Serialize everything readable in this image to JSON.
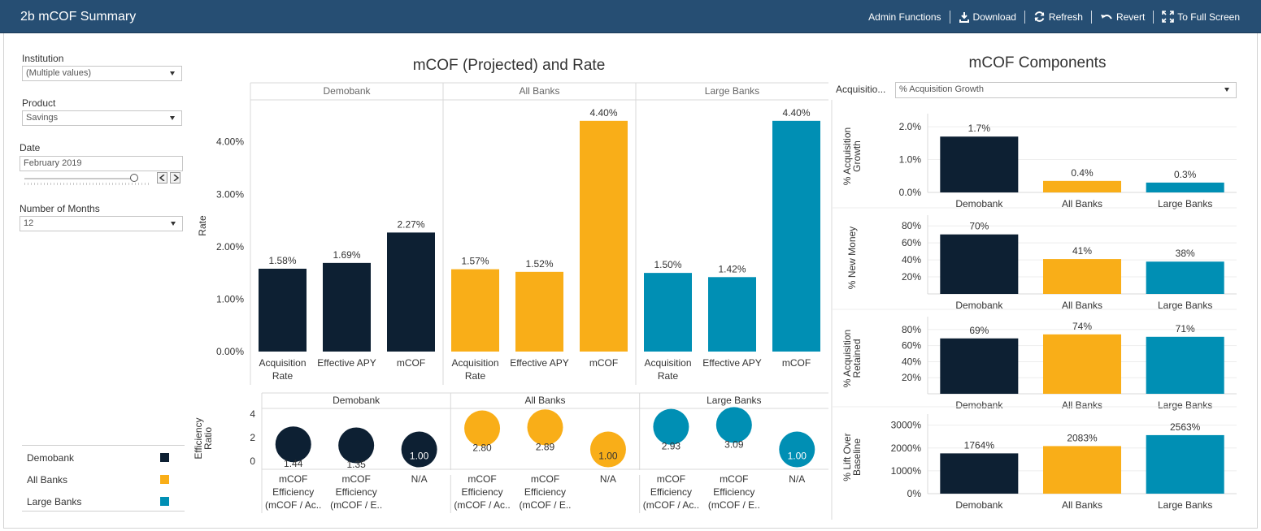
{
  "app": {
    "title": "2b mCOF Summary"
  },
  "toolbar": {
    "admin_label": "Admin Functions",
    "download_label": "Download",
    "refresh_label": "Refresh",
    "revert_label": "Revert",
    "fullscreen_label": "To Full Screen"
  },
  "filters": {
    "institution": {
      "label": "Institution",
      "value": "(Multiple values)"
    },
    "product": {
      "label": "Product",
      "value": "Savings"
    },
    "date": {
      "label": "Date",
      "value": "February 2019"
    },
    "months": {
      "label": "Number of Months",
      "value": "12"
    }
  },
  "legend": [
    {
      "name": "Demobank",
      "color": "#0d2033"
    },
    {
      "name": "All Banks",
      "color": "#f9ae18"
    },
    {
      "name": "Large Banks",
      "color": "#008fb4"
    }
  ],
  "colors": {
    "Demobank": "#0d2033",
    "All Banks": "#f9ae18",
    "Large Banks": "#008fb4"
  },
  "main_chart": {
    "title": "mCOF (Projected) and Rate"
  },
  "components": {
    "title": "mCOF Components",
    "selector_label": "Acquisitio...",
    "selector_value": "% Acquisition Growth"
  },
  "chart_data": [
    {
      "id": "rate",
      "type": "bar",
      "ylabel": "Rate",
      "ylim": [
        0,
        4.8
      ],
      "yticks": [
        "0.00%",
        "1.00%",
        "2.00%",
        "3.00%",
        "4.00%"
      ],
      "ytick_values": [
        0,
        1,
        2,
        3,
        4
      ],
      "panels": [
        "Demobank",
        "All Banks",
        "Large Banks"
      ],
      "categories": [
        "Acquisition Rate",
        "Effective APY",
        "mCOF"
      ],
      "category_lines": [
        [
          "Acquisition",
          "Rate"
        ],
        [
          "Effective APY"
        ],
        [
          "mCOF"
        ]
      ],
      "series": [
        {
          "name": "Demobank",
          "values": [
            1.58,
            1.69,
            2.27
          ],
          "labels": [
            "1.58%",
            "1.69%",
            "2.27%"
          ]
        },
        {
          "name": "All Banks",
          "values": [
            1.57,
            1.52,
            4.4
          ],
          "labels": [
            "1.57%",
            "1.52%",
            "4.40%"
          ]
        },
        {
          "name": "Large Banks",
          "values": [
            1.5,
            1.42,
            4.4
          ],
          "labels": [
            "1.50%",
            "1.42%",
            "4.40%"
          ]
        }
      ]
    },
    {
      "id": "efficiency",
      "type": "scatter",
      "ylabel": "Efficiency Ratio",
      "ylim": [
        0,
        4.5
      ],
      "yticks": [
        "0",
        "2",
        "4"
      ],
      "ytick_values": [
        0,
        2,
        4
      ],
      "panels": [
        "Demobank",
        "All Banks",
        "Large Banks"
      ],
      "category_lines": [
        [
          "mCOF",
          "Efficiency",
          "(mCOF / Ac.."
        ],
        [
          "mCOF",
          "Efficiency",
          "(mCOF / E.."
        ],
        [
          "N/A"
        ]
      ],
      "series": [
        {
          "name": "Demobank",
          "values": [
            1.44,
            1.35,
            1.0
          ],
          "labels": [
            "1.44",
            "1.35",
            "1.00"
          ]
        },
        {
          "name": "All Banks",
          "values": [
            2.8,
            2.89,
            1.0
          ],
          "labels": [
            "2.80",
            "2.89",
            "1.00"
          ]
        },
        {
          "name": "Large Banks",
          "values": [
            2.93,
            3.09,
            1.0
          ],
          "labels": [
            "2.93",
            "3.09",
            "1.00"
          ]
        }
      ]
    },
    {
      "id": "acq-growth",
      "type": "bar",
      "ylabel": [
        "% Acquisition",
        "Growth"
      ],
      "ylim": [
        0,
        2.2
      ],
      "yticks": [
        "0.0%",
        "1.0%",
        "2.0%"
      ],
      "ytick_values": [
        0,
        1,
        2
      ],
      "categories": [
        "Demobank",
        "All Banks",
        "Large Banks"
      ],
      "values": [
        1.7,
        0.35,
        0.3
      ],
      "labels": [
        "1.7%",
        "0.4%",
        "0.3%"
      ]
    },
    {
      "id": "new-money",
      "type": "bar",
      "ylabel": [
        "% New Money"
      ],
      "ylim": [
        0,
        85
      ],
      "yticks": [
        "20%",
        "40%",
        "60%",
        "80%"
      ],
      "ytick_values": [
        20,
        40,
        60,
        80
      ],
      "categories": [
        "Demobank",
        "All Banks",
        "Large Banks"
      ],
      "values": [
        70,
        41,
        38
      ],
      "labels": [
        "70%",
        "41%",
        "38%"
      ]
    },
    {
      "id": "acq-retained",
      "type": "bar",
      "ylabel": [
        "% Acquisition",
        "Retained"
      ],
      "ylim": [
        0,
        88
      ],
      "yticks": [
        "20%",
        "40%",
        "60%",
        "80%"
      ],
      "ytick_values": [
        20,
        40,
        60,
        80
      ],
      "categories": [
        "Demobank",
        "All Banks",
        "Large Banks"
      ],
      "values": [
        69,
        74,
        71
      ],
      "labels": [
        "69%",
        "74%",
        "71%"
      ]
    },
    {
      "id": "lift",
      "type": "bar",
      "ylabel": [
        "% Lift Over",
        "Baseline"
      ],
      "ylim": [
        0,
        3200
      ],
      "yticks": [
        "0%",
        "1000%",
        "2000%",
        "3000%"
      ],
      "ytick_values": [
        0,
        1000,
        2000,
        3000
      ],
      "categories": [
        "Demobank",
        "All Banks",
        "Large Banks"
      ],
      "values": [
        1764,
        2083,
        2563
      ],
      "labels": [
        "1764%",
        "2083%",
        "2563%"
      ]
    }
  ]
}
